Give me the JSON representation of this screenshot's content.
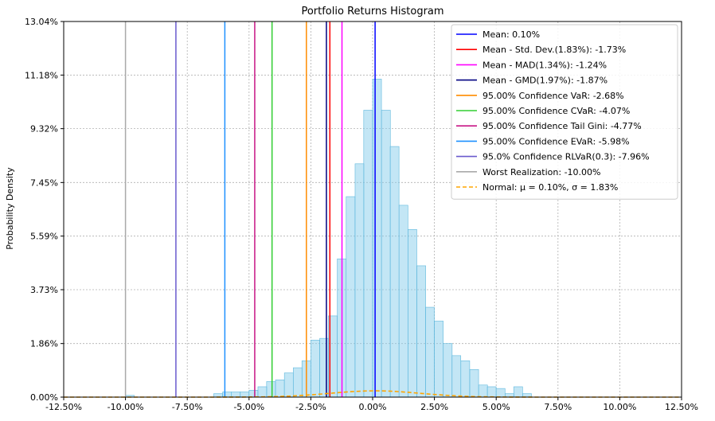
{
  "chart_data": {
    "type": "bar",
    "title": "Portfolio Returns Histogram",
    "xlabel": "",
    "ylabel": "Probability Density",
    "xlim": [
      -0.125,
      0.125
    ],
    "ylim": [
      0,
      13.04
    ],
    "xticks": [
      -0.125,
      -0.1,
      -0.075,
      -0.05,
      -0.025,
      0.0,
      0.025,
      0.05,
      0.075,
      0.1,
      0.125
    ],
    "xtick_labels": [
      "-12.50%",
      "-10.00%",
      "-7.50%",
      "-5.00%",
      "-2.50%",
      "0.00%",
      "2.50%",
      "5.00%",
      "7.50%",
      "10.00%",
      "12.50%"
    ],
    "yticks": [
      0,
      1.86,
      3.73,
      5.59,
      7.45,
      9.32,
      11.18,
      13.04
    ],
    "ytick_labels": [
      "0.00%",
      "1.86%",
      "3.73%",
      "5.59%",
      "7.45%",
      "9.32%",
      "11.18%",
      "13.04%"
    ],
    "grid": true,
    "legend_position": "top-right",
    "histogram": {
      "color": "#87ceeb",
      "edge_color": "#5fb8dd",
      "bins": [
        {
          "left": -0.1,
          "width": 0.00357,
          "height": 0.06
        },
        {
          "left": -0.0643,
          "width": 0.00357,
          "height": 0.12
        },
        {
          "left": -0.0607,
          "width": 0.00357,
          "height": 0.18
        },
        {
          "left": -0.0571,
          "width": 0.00357,
          "height": 0.18
        },
        {
          "left": -0.0536,
          "width": 0.00357,
          "height": 0.18
        },
        {
          "left": -0.05,
          "width": 0.00357,
          "height": 0.24
        },
        {
          "left": -0.0464,
          "width": 0.00357,
          "height": 0.36
        },
        {
          "left": -0.0429,
          "width": 0.00357,
          "height": 0.54
        },
        {
          "left": -0.0393,
          "width": 0.00357,
          "height": 0.6
        },
        {
          "left": -0.0357,
          "width": 0.00357,
          "height": 0.84
        },
        {
          "left": -0.0321,
          "width": 0.00357,
          "height": 1.02
        },
        {
          "left": -0.0286,
          "width": 0.00357,
          "height": 1.26
        },
        {
          "left": -0.025,
          "width": 0.00357,
          "height": 1.98
        },
        {
          "left": -0.0214,
          "width": 0.00357,
          "height": 2.04
        },
        {
          "left": -0.0179,
          "width": 0.00357,
          "height": 2.82
        },
        {
          "left": -0.0143,
          "width": 0.00357,
          "height": 4.8
        },
        {
          "left": -0.0107,
          "width": 0.00357,
          "height": 6.96
        },
        {
          "left": -0.0071,
          "width": 0.00357,
          "height": 8.1
        },
        {
          "left": -0.0036,
          "width": 0.00357,
          "height": 9.96
        },
        {
          "left": 0.0,
          "width": 0.00357,
          "height": 11.04
        },
        {
          "left": 0.0036,
          "width": 0.00357,
          "height": 9.96
        },
        {
          "left": 0.0071,
          "width": 0.00357,
          "height": 8.7
        },
        {
          "left": 0.0107,
          "width": 0.00357,
          "height": 6.66
        },
        {
          "left": 0.0143,
          "width": 0.00357,
          "height": 5.82
        },
        {
          "left": 0.0179,
          "width": 0.00357,
          "height": 4.56
        },
        {
          "left": 0.0214,
          "width": 0.00357,
          "height": 3.12
        },
        {
          "left": 0.025,
          "width": 0.00357,
          "height": 2.64
        },
        {
          "left": 0.0286,
          "width": 0.00357,
          "height": 1.86
        },
        {
          "left": 0.0321,
          "width": 0.00357,
          "height": 1.44
        },
        {
          "left": 0.0357,
          "width": 0.00357,
          "height": 1.26
        },
        {
          "left": 0.0393,
          "width": 0.00357,
          "height": 0.96
        },
        {
          "left": 0.0429,
          "width": 0.00357,
          "height": 0.42
        },
        {
          "left": 0.0464,
          "width": 0.00357,
          "height": 0.36
        },
        {
          "left": 0.05,
          "width": 0.00357,
          "height": 0.3
        },
        {
          "left": 0.0536,
          "width": 0.00357,
          "height": 0.12
        },
        {
          "left": 0.0571,
          "width": 0.00357,
          "height": 0.36
        },
        {
          "left": 0.0607,
          "width": 0.00357,
          "height": 0.12
        }
      ]
    },
    "normal_curve": {
      "label": "Normal: $\\mu = 0.10\\%$, $\\sigma = 1.83\\%$",
      "legend_text": "Normal: μ = 0.10%, σ = 1.83%",
      "mu": 0.001,
      "sigma": 0.0183,
      "color": "#ffa500",
      "style": "dashed"
    },
    "vlines": [
      {
        "name": "mean",
        "x": 0.001,
        "color": "#0000ff",
        "label": "Mean: 0.10%"
      },
      {
        "name": "std",
        "x": -0.0173,
        "color": "#ff0000",
        "label": "Mean - Std. Dev.(1.83%): -1.73%"
      },
      {
        "name": "mad",
        "x": -0.0124,
        "color": "#ff00ff",
        "label": "Mean - MAD(1.34%): -1.24%"
      },
      {
        "name": "gmd",
        "x": -0.0187,
        "color": "#000080",
        "label": "Mean - GMD(1.97%): -1.87%"
      },
      {
        "name": "var",
        "x": -0.0268,
        "color": "#ff8c00",
        "label": "95.00% Confidence VaR: -2.68%"
      },
      {
        "name": "cvar",
        "x": -0.0407,
        "color": "#32cd32",
        "label": "95.00% Confidence CVaR: -4.07%"
      },
      {
        "name": "tail-gini",
        "x": -0.0477,
        "color": "#c71585",
        "label": "95.00% Confidence Tail Gini: -4.77%"
      },
      {
        "name": "evar",
        "x": -0.0598,
        "color": "#1e90ff",
        "label": "95.00% Confidence EVaR: -5.98%"
      },
      {
        "name": "rlvar",
        "x": -0.0796,
        "color": "#6a5acd",
        "label": "95.0% Confidence RLVaR(0.3): -7.96%"
      },
      {
        "name": "worst",
        "x": -0.1,
        "color": "#a9a9a9",
        "label": "Worst Realization: -10.00%"
      }
    ]
  }
}
